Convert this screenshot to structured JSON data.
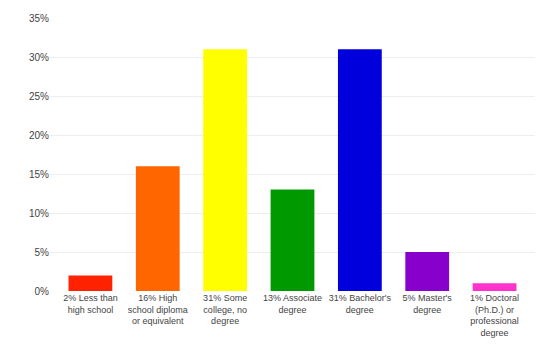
{
  "chart_data": {
    "type": "bar",
    "categories": [
      "2% Less than\nhigh school",
      "16% High\nschool diploma\nor equivalent",
      "31% Some\ncollege, no\ndegree",
      "13% Associate\ndegree",
      "31% Bachelor's\ndegree",
      "5% Master's\ndegree",
      "1% Doctoral\n(Ph.D.) or\nprofessional\ndegree"
    ],
    "values": [
      2,
      16,
      31,
      13,
      31,
      5,
      1
    ],
    "colors": [
      "#ff2200",
      "#ff6600",
      "#ffff00",
      "#009900",
      "#0000dd",
      "#8800cc",
      "#ff33cc"
    ],
    "ylim": [
      0,
      35
    ],
    "yticks": [
      {
        "value": 0,
        "label": "0%"
      },
      {
        "value": 5,
        "label": "5%"
      },
      {
        "value": 10,
        "label": "10%"
      },
      {
        "value": 15,
        "label": "15%"
      },
      {
        "value": 20,
        "label": "20%"
      },
      {
        "value": 25,
        "label": "25%"
      },
      {
        "value": 30,
        "label": "30%"
      },
      {
        "value": 35,
        "label": "35%"
      }
    ],
    "grid": true
  }
}
